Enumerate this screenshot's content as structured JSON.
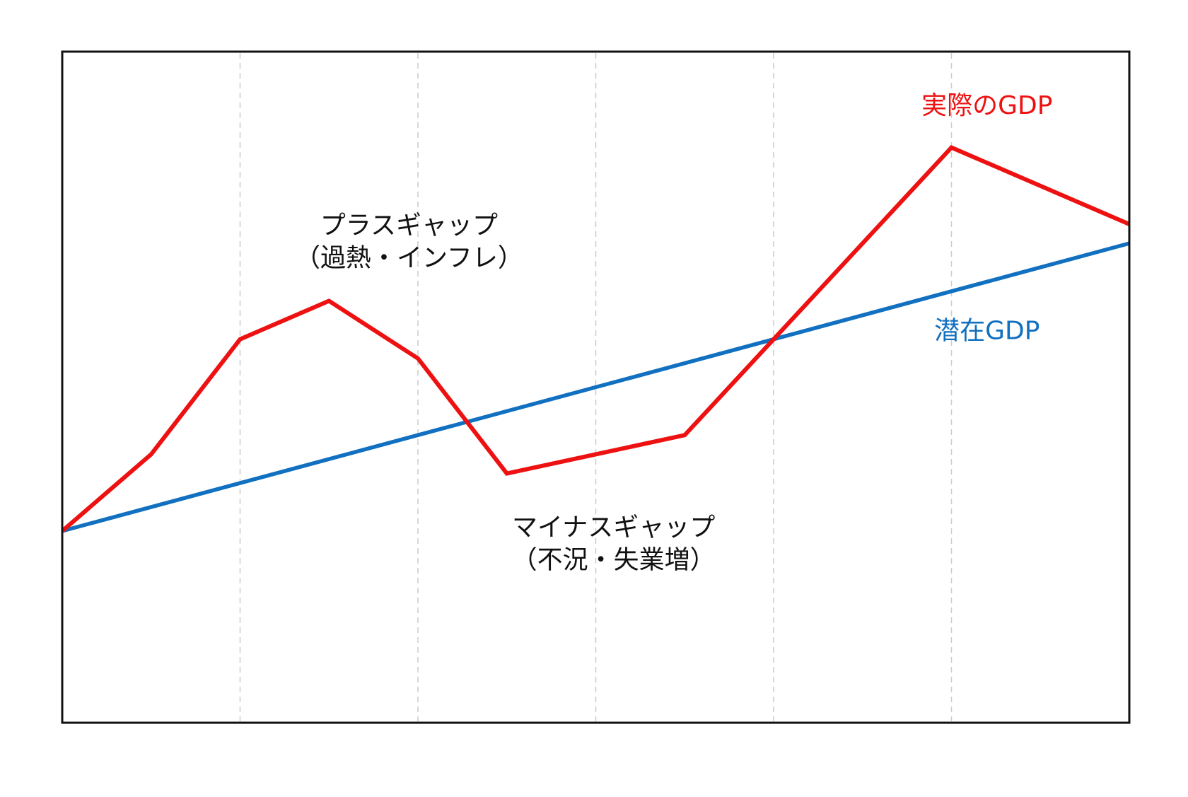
{
  "chart_data": {
    "type": "line",
    "title": "",
    "xlabel": "",
    "ylabel": "",
    "x": [
      0,
      0.5,
      1,
      1.5,
      2,
      2.5,
      3,
      3.5,
      4,
      4.5,
      5,
      5.5,
      6
    ],
    "xlim": [
      0,
      6
    ],
    "ylim": [
      0,
      7
    ],
    "grid": {
      "vertical": true,
      "horizontal": false
    },
    "vertical_gridlines_at": [
      1,
      2,
      3,
      4,
      5
    ],
    "series": [
      {
        "key": "actual",
        "name": "実際のGDP",
        "color": "#ee1111",
        "x": [
          0,
          0.5,
          1,
          1.5,
          2,
          2.5,
          3.5,
          4,
          5,
          6
        ],
        "values": [
          2.0,
          2.8,
          4.0,
          4.4,
          3.8,
          2.6,
          3.0,
          4.0,
          6.0,
          5.2
        ]
      },
      {
        "key": "potential",
        "name": "潜在GDP",
        "color": "#1170c0",
        "x": [
          0,
          6
        ],
        "values": [
          2.0,
          5.0
        ]
      }
    ],
    "annotations": [
      {
        "key": "plus-gap",
        "lines": [
          "プラスギャップ",
          "（過熱・インフレ）"
        ],
        "x": 1.95,
        "y": 5.1
      },
      {
        "key": "minus-gap",
        "lines": [
          "マイナスギャップ",
          "（不況・失業増）"
        ],
        "x": 3.1,
        "y": 1.95
      }
    ],
    "series_labels": [
      {
        "key": "actual",
        "text": "実際のGDP",
        "x": 5.2,
        "y": 6.35
      },
      {
        "key": "potential",
        "text": "潜在GDP",
        "x": 5.2,
        "y": 4.0
      }
    ]
  }
}
